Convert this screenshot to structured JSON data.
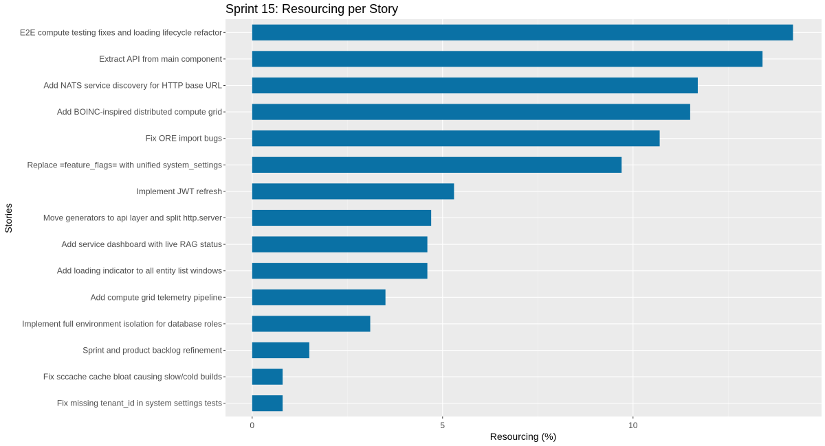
{
  "chart_data": {
    "type": "bar",
    "orientation": "horizontal",
    "title": "Sprint 15: Resourcing per Story",
    "xlabel": "Resourcing (%)",
    "ylabel": "Stories",
    "xlim": [
      -0.7,
      14.95
    ],
    "x_ticks": [
      0,
      5,
      10
    ],
    "x_tick_labels": [
      "0",
      "5",
      "10"
    ],
    "grid": true,
    "legend": "none",
    "colors": {
      "bar": "#0a71a5",
      "panel_background": "#ebebeb",
      "grid_major": "#ffffff",
      "grid_minor": "#f4f4f4",
      "tick_label": "#4d4d4d",
      "tick_mark": "#333333"
    },
    "categories": [
      "E2E compute testing fixes and loading lifecycle refactor",
      "Extract API from main component",
      "Add NATS service discovery for HTTP base URL",
      "Add BOINC-inspired distributed compute grid",
      "Fix ORE import bugs",
      "Replace =feature_flags= with unified system_settings",
      "Implement JWT refresh",
      "Move generators to api layer and split http.server",
      "Add service dashboard with live RAG status",
      "Add loading indicator to all entity list windows",
      "Add compute grid telemetry pipeline",
      "Implement full environment isolation for database roles",
      "Sprint and product backlog refinement",
      "Fix sccache cache bloat causing slow/cold builds",
      "Fix missing tenant_id in system settings tests"
    ],
    "values": [
      14.2,
      13.4,
      11.7,
      11.5,
      10.7,
      9.7,
      5.3,
      4.7,
      4.6,
      4.6,
      3.5,
      3.1,
      1.5,
      0.8,
      0.8
    ]
  }
}
